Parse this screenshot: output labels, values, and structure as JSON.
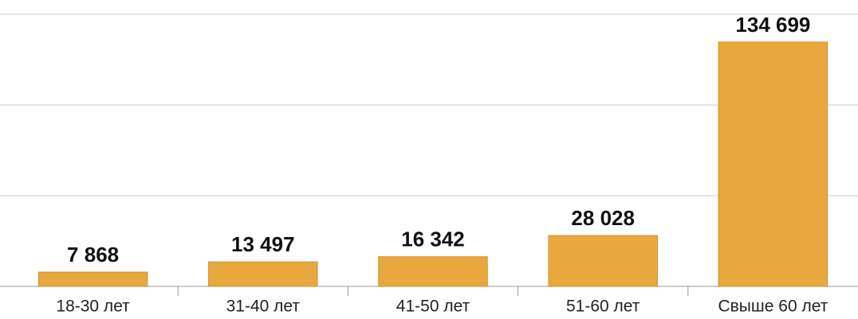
{
  "chart_data": {
    "type": "bar",
    "categories": [
      "18-30 лет",
      "31-40 лет",
      "41-50 лет",
      "51-60 лет",
      "Свыше 60 лет"
    ],
    "values": [
      7868,
      13497,
      16342,
      28028,
      134699
    ],
    "value_labels": [
      "7 868",
      "13 497",
      "16 342",
      "28 028",
      "134 699"
    ],
    "color": "#e9a83e",
    "ylim": [
      0,
      150000
    ],
    "yticks": [
      0,
      50000,
      100000,
      150000
    ],
    "grid": true
  }
}
